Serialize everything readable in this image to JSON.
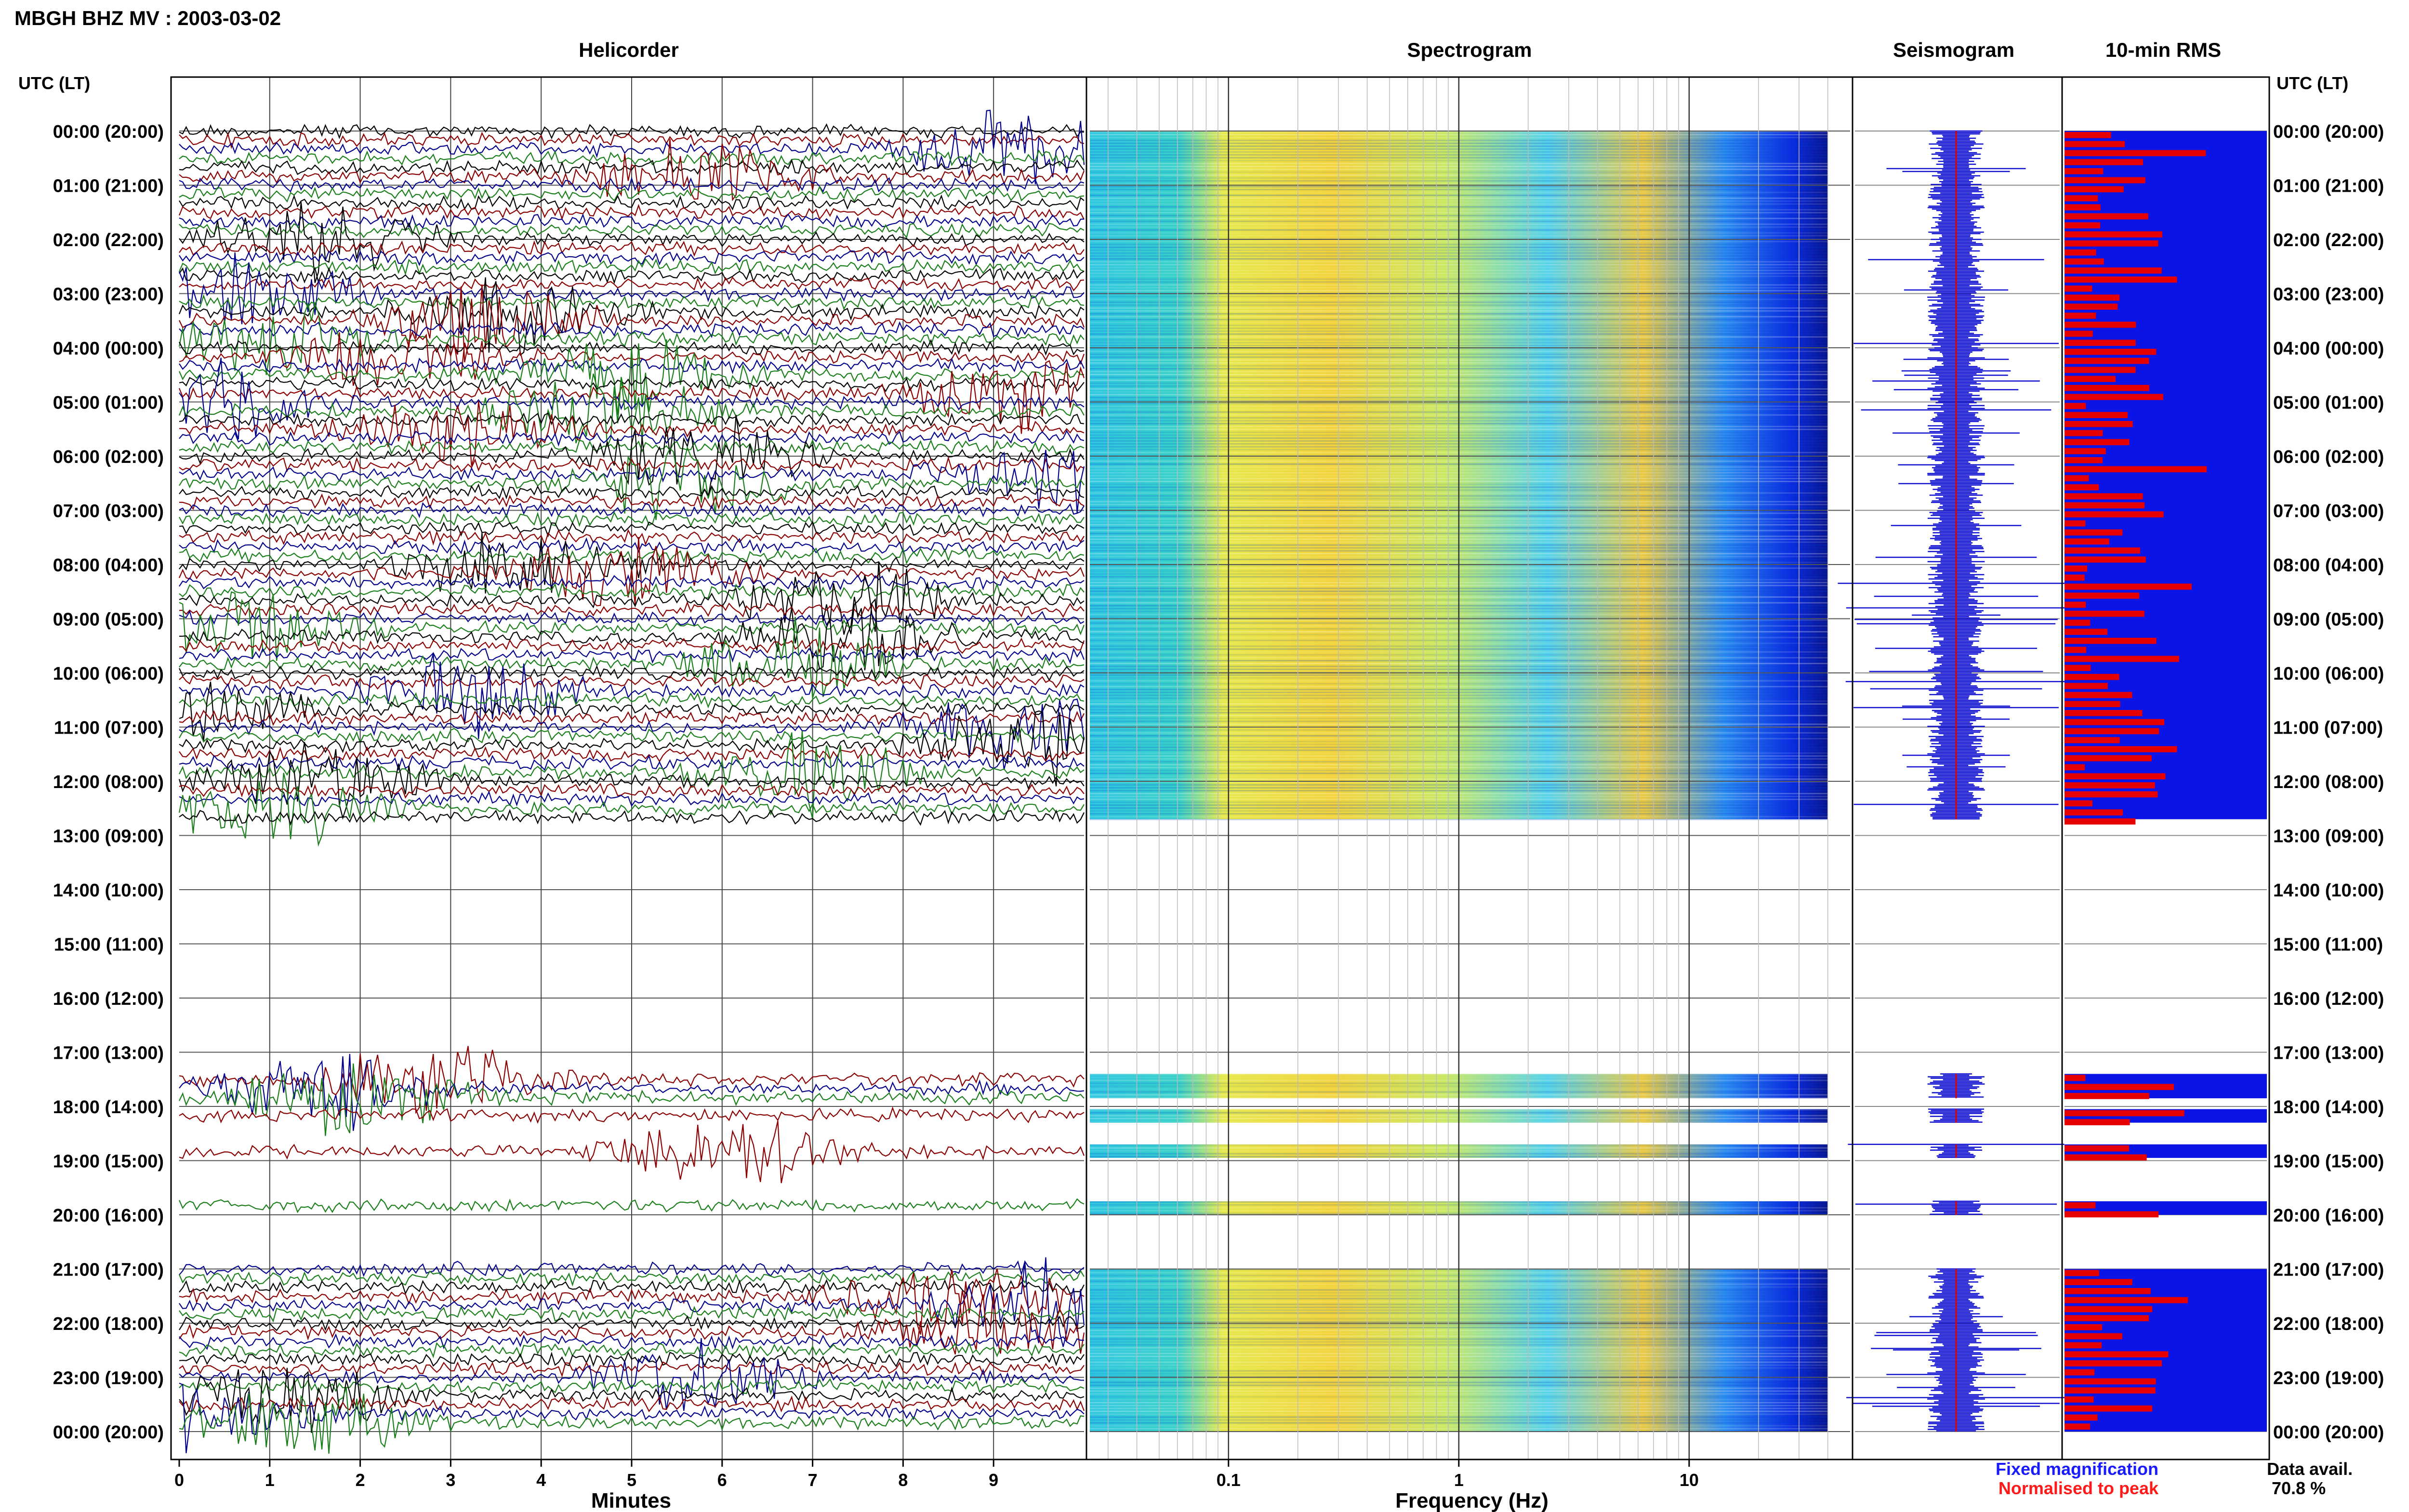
{
  "title": "MBGH BHZ MV : 2003-03-02",
  "panels": {
    "helicorder": "Helicorder",
    "spectrogram": "Spectrogram",
    "seismogram": "Seismogram",
    "rms": "10-min RMS"
  },
  "axis_labels": {
    "left_header": "UTC (LT)",
    "right_header": "UTC (LT)",
    "helicorder_x": "Minutes",
    "spectrogram_x": "Frequency (Hz)"
  },
  "legend": {
    "fixed": "Fixed magnification",
    "normalised": "Normalised to peak",
    "data_avail_label": "Data avail.",
    "data_avail_value": "70.8 %"
  },
  "colors": {
    "trace": [
      "#000000",
      "#8b0000",
      "#00008b",
      "#1a7f1a"
    ],
    "spectrogram_base": "#0a1fd6",
    "rms_fixed": "#0a14e6",
    "rms_normalised": "#e60000",
    "fixed_text": "#1a1aff",
    "normalised_text": "#ff1a1a"
  },
  "chart_data": [
    {
      "type": "line",
      "name": "Helicorder",
      "xlabel": "Minutes",
      "x_ticks": [
        "0",
        "1",
        "2",
        "3",
        "4",
        "5",
        "6",
        "7",
        "8",
        "9"
      ],
      "xlim": [
        0,
        10
      ],
      "y_tick_labels": [
        "00:00 (20:00)",
        "01:00 (21:00)",
        "02:00 (22:00)",
        "03:00 (23:00)",
        "04:00 (00:00)",
        "05:00 (01:00)",
        "06:00 (02:00)",
        "07:00 (03:00)",
        "08:00 (04:00)",
        "09:00 (05:00)",
        "10:00 (06:00)",
        "11:00 (07:00)",
        "12:00 (08:00)",
        "13:00 (09:00)",
        "14:00 (10:00)",
        "15:00 (11:00)",
        "16:00 (12:00)",
        "17:00 (13:00)",
        "18:00 (14:00)",
        "19:00 (15:00)",
        "20:00 (16:00)",
        "21:00 (17:00)",
        "22:00 (18:00)",
        "23:00 (19:00)",
        "00:00 (20:00)"
      ],
      "data_segments_utc_hours": [
        [
          0,
          12.7
        ],
        [
          17.4,
          17.85
        ],
        [
          18.05,
          18.3
        ],
        [
          18.7,
          18.95
        ],
        [
          19.75,
          20.0
        ],
        [
          21.0,
          24.0
        ]
      ]
    },
    {
      "type": "heatmap",
      "name": "Spectrogram",
      "xlabel": "Frequency (Hz)",
      "x_scale": "log",
      "x_ticks": [
        "0.1",
        "1",
        "10"
      ],
      "xlim": [
        0.025,
        50
      ]
    },
    {
      "type": "line",
      "name": "Seismogram"
    },
    {
      "type": "bar",
      "name": "10-min RMS",
      "series": [
        {
          "name": "Fixed magnification"
        },
        {
          "name": "Normalised to peak"
        }
      ]
    }
  ]
}
